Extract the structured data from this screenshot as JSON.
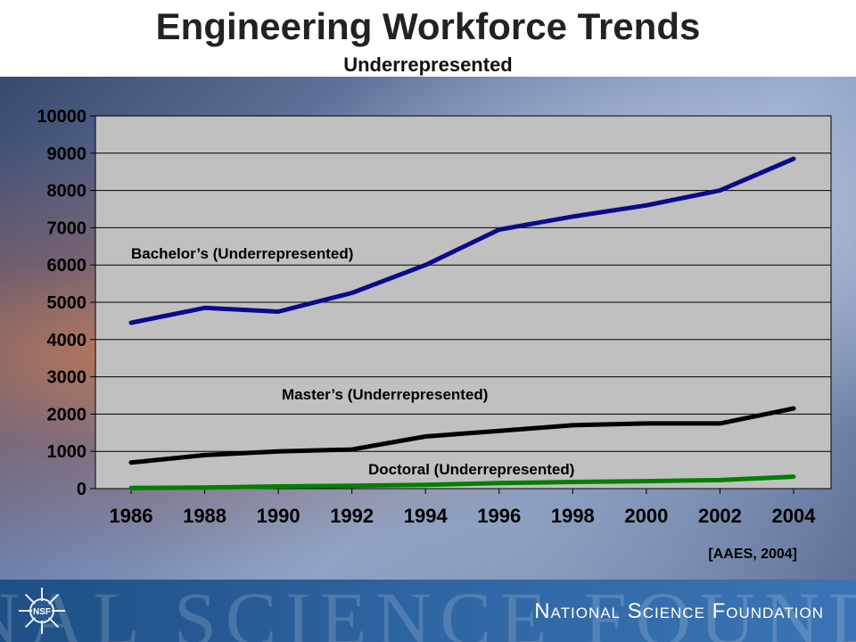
{
  "page": {
    "title": "Engineering Workforce Trends",
    "subtitle": "Underrepresented",
    "source": "[AAES, 2004]"
  },
  "footer": {
    "watermark": "NAL SCIENCE FOUND",
    "organization": "National Science Foundation",
    "logo_text": "NSF"
  },
  "colors": {
    "plot_background": "#c0c0c0",
    "bachelors": "#0a0a8c",
    "masters": "#000000",
    "doctoral": "#008000",
    "gridline": "#000000"
  },
  "chart_data": {
    "type": "line",
    "title": "Engineering Workforce Trends",
    "subtitle": "Underrepresented",
    "xlabel": "",
    "ylabel": "",
    "x": [
      1986,
      1988,
      1990,
      1992,
      1994,
      1996,
      1998,
      2000,
      2002,
      2004
    ],
    "xtick_labels": [
      "1986",
      "1988",
      "1990",
      "1992",
      "1994",
      "1996",
      "1998",
      "2000",
      "2002",
      "2004"
    ],
    "ylim": [
      0,
      10000
    ],
    "yticks": [
      0,
      1000,
      2000,
      3000,
      4000,
      5000,
      6000,
      7000,
      8000,
      9000,
      10000
    ],
    "ytick_labels": [
      "0",
      "1000",
      "2000",
      "3000",
      "4000",
      "5000",
      "6000",
      "7000",
      "8000",
      "9000",
      "10000"
    ],
    "grid": true,
    "legend": "none (inline series labels)",
    "series": [
      {
        "name": "Bachelor’s (Underrepresented)",
        "color": "#0a0a8c",
        "x": [
          1986,
          1988,
          1990,
          1992,
          1994,
          1996,
          1998,
          2000,
          2002,
          2004
        ],
        "values": [
          4450,
          4850,
          4750,
          5250,
          6000,
          6950,
          7300,
          7600,
          8000,
          8850
        ]
      },
      {
        "name": "Master’s (Underrepresented)",
        "color": "#000000",
        "x": [
          1986,
          1988,
          1990,
          1992,
          1994,
          1996,
          1998,
          2000,
          2002,
          2004
        ],
        "values": [
          700,
          900,
          1000,
          1050,
          1400,
          1550,
          1700,
          1750,
          1750,
          2150
        ]
      },
      {
        "name": "Doctoral (Underrepresented)",
        "color": "#008000",
        "x": [
          1986,
          1988,
          1990,
          1992,
          1994,
          1996,
          1998,
          2000,
          2002,
          2004
        ],
        "values": [
          20,
          30,
          60,
          80,
          100,
          150,
          180,
          200,
          230,
          320
        ]
      }
    ]
  }
}
